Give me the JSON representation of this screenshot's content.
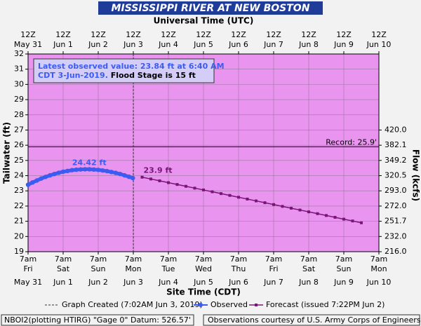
{
  "chart_data": {
    "type": "hydrograph",
    "title": "MISSISSIPPI RIVER AT NEW BOSTON",
    "x2_title": "Universal Time (UTC)",
    "x_title": "Site Time (CDT)",
    "y_title": "Tailwater (ft)",
    "y2_title": "Flow (kcfs)",
    "xlim": [
      "2019-05-31T07:00",
      "2019-06-10T07:00"
    ],
    "xticks": [
      {
        "value": "2019-05-31T07:00",
        "label": "7am",
        "weekday": "Fri",
        "date": "May 31"
      },
      {
        "value": "2019-06-01T07:00",
        "label": "7am",
        "weekday": "Sat",
        "date": "Jun 1"
      },
      {
        "value": "2019-06-02T07:00",
        "label": "7am",
        "weekday": "Sun",
        "date": "Jun 2"
      },
      {
        "value": "2019-06-03T07:00",
        "label": "7am",
        "weekday": "Mon",
        "date": "Jun 3"
      },
      {
        "value": "2019-06-04T07:00",
        "label": "7am",
        "weekday": "Tue",
        "date": "Jun 4"
      },
      {
        "value": "2019-06-05T07:00",
        "label": "7am",
        "weekday": "Wed",
        "date": "Jun 5"
      },
      {
        "value": "2019-06-06T07:00",
        "label": "7am",
        "weekday": "Thu",
        "date": "Jun 6"
      },
      {
        "value": "2019-06-07T07:00",
        "label": "7am",
        "weekday": "Fri",
        "date": "Jun 7"
      },
      {
        "value": "2019-06-08T07:00",
        "label": "7am",
        "weekday": "Sat",
        "date": "Jun 8"
      },
      {
        "value": "2019-06-09T07:00",
        "label": "7am",
        "weekday": "Sun",
        "date": "Jun 9"
      },
      {
        "value": "2019-06-10T07:00",
        "label": "7am",
        "weekday": "Mon",
        "date": "Jun 10"
      }
    ],
    "x2ticks": [
      {
        "value": "2019-05-31T07:00",
        "label": "12Z",
        "date": "May 31"
      },
      {
        "value": "2019-06-01T07:00",
        "label": "12Z",
        "date": "Jun 1"
      },
      {
        "value": "2019-06-02T07:00",
        "label": "12Z",
        "date": "Jun 2"
      },
      {
        "value": "2019-06-03T07:00",
        "label": "12Z",
        "date": "Jun 3"
      },
      {
        "value": "2019-06-04T07:00",
        "label": "12Z",
        "date": "Jun 4"
      },
      {
        "value": "2019-06-05T07:00",
        "label": "12Z",
        "date": "Jun 5"
      },
      {
        "value": "2019-06-06T07:00",
        "label": "12Z",
        "date": "Jun 6"
      },
      {
        "value": "2019-06-07T07:00",
        "label": "12Z",
        "date": "Jun 7"
      },
      {
        "value": "2019-06-08T07:00",
        "label": "12Z",
        "date": "Jun 8"
      },
      {
        "value": "2019-06-09T07:00",
        "label": "12Z",
        "date": "Jun 9"
      },
      {
        "value": "2019-06-10T07:00",
        "label": "12Z",
        "date": "Jun 10"
      }
    ],
    "ylim": [
      19,
      32
    ],
    "yticks": [
      19,
      20,
      21,
      22,
      23,
      24,
      25,
      26,
      27,
      28,
      29,
      30,
      31,
      32
    ],
    "y2ticks": [
      {
        "value": 216.0,
        "label": "216.0"
      },
      {
        "value": 232.0,
        "label": "232.0"
      },
      251.7,
      {
        "value": 272.0,
        "label": "272.0"
      },
      {
        "value": 293.0,
        "label": "293.0"
      },
      320.5,
      349.2,
      382.1,
      {
        "value": 420.0,
        "label": "420.0"
      }
    ],
    "grid": true,
    "background": "#e994ef",
    "series": [
      {
        "name": "Observed",
        "color": "#3b5cf2",
        "x": [
          "2019-05-31T07:00",
          "2019-05-31T10:00",
          "2019-05-31T13:00",
          "2019-05-31T16:00",
          "2019-05-31T19:00",
          "2019-05-31T22:00",
          "2019-06-01T01:00",
          "2019-06-01T04:00",
          "2019-06-01T07:00",
          "2019-06-01T10:00",
          "2019-06-01T13:00",
          "2019-06-01T16:00",
          "2019-06-01T19:00",
          "2019-06-01T22:00",
          "2019-06-02T01:00",
          "2019-06-02T04:00",
          "2019-06-02T07:00",
          "2019-06-02T10:00",
          "2019-06-02T13:00",
          "2019-06-02T16:00",
          "2019-06-02T19:00",
          "2019-06-02T22:00",
          "2019-06-03T01:00",
          "2019-06-03T04:00",
          "2019-06-03T06:40"
        ],
        "values": [
          23.4,
          23.55,
          23.68,
          23.81,
          23.92,
          24.02,
          24.11,
          24.19,
          24.26,
          24.31,
          24.36,
          24.39,
          24.41,
          24.42,
          24.42,
          24.4,
          24.38,
          24.34,
          24.3,
          24.24,
          24.18,
          24.11,
          24.02,
          23.93,
          23.84
        ]
      },
      {
        "name": "Forecast (issued 7:22PM Jun 2)",
        "color": "#7a1478",
        "x": [
          "2019-06-03T13:00",
          "2019-06-03T19:00",
          "2019-06-04T01:00",
          "2019-06-04T07:00",
          "2019-06-04T13:00",
          "2019-06-04T19:00",
          "2019-06-05T01:00",
          "2019-06-05T07:00",
          "2019-06-05T13:00",
          "2019-06-05T19:00",
          "2019-06-06T01:00",
          "2019-06-06T07:00",
          "2019-06-06T13:00",
          "2019-06-06T19:00",
          "2019-06-07T01:00",
          "2019-06-07T07:00",
          "2019-06-07T13:00",
          "2019-06-07T19:00",
          "2019-06-08T01:00",
          "2019-06-08T07:00",
          "2019-06-08T13:00",
          "2019-06-08T19:00",
          "2019-06-09T01:00",
          "2019-06-09T07:00",
          "2019-06-09T13:00",
          "2019-06-09T19:00"
        ],
        "values": [
          23.9,
          23.78,
          23.66,
          23.54,
          23.42,
          23.3,
          23.18,
          23.06,
          22.94,
          22.82,
          22.7,
          22.58,
          22.46,
          22.34,
          22.22,
          22.1,
          21.98,
          21.86,
          21.74,
          21.62,
          21.5,
          21.38,
          21.26,
          21.14,
          21.02,
          20.9
        ]
      }
    ],
    "point_labels": [
      {
        "series": 0,
        "index": 13,
        "text": "24.42 ft"
      },
      {
        "series": 1,
        "index": 0,
        "text": "23.9 ft"
      }
    ],
    "record": {
      "value": 25.9,
      "label": "Record: 25.9'"
    },
    "created": {
      "x": "2019-06-03T07:02",
      "label": "Graph Created (7:02AM Jun 3, 2019)"
    },
    "note": {
      "line1": "Latest observed value: 23.84 ft at 6:40 AM",
      "line2": "CDT 3-Jun-2019.",
      "line3": " Flood Stage is 15 ft"
    },
    "footer": {
      "left": "NBOI2(plotting HTIRG) \"Gage 0\" Datum: 526.57'",
      "right": "Observations courtesy of U.S. Army Corps of Engineers"
    }
  }
}
